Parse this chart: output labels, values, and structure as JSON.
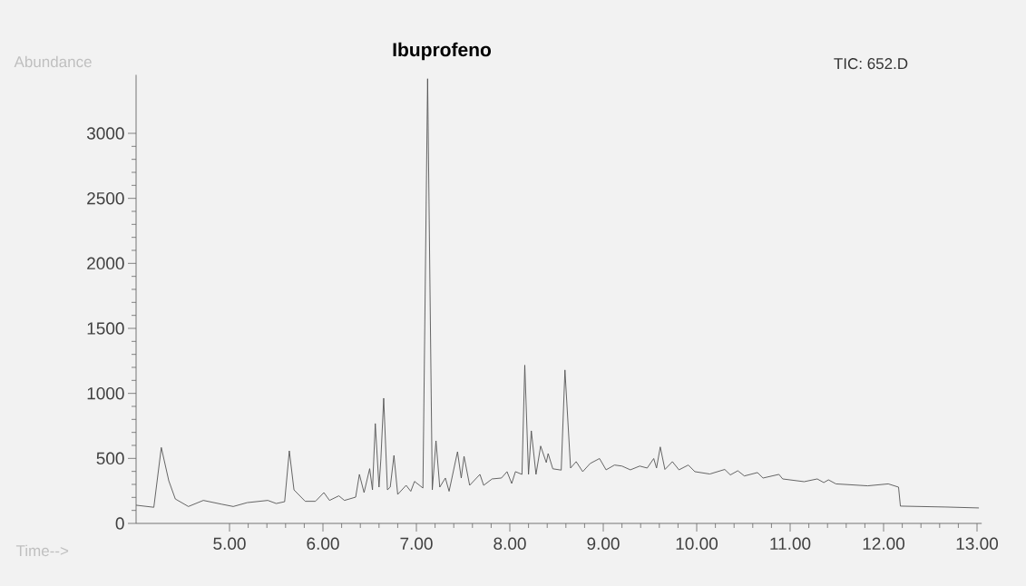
{
  "chart_data": {
    "type": "line",
    "title": "Ibuprofeno",
    "subtitle": "TIC: 652.D",
    "xlabel": "Time-->",
    "ylabel": "Abundance",
    "x": [
      4.0,
      4.19,
      4.27,
      4.35,
      4.42,
      4.56,
      4.72,
      4.92,
      5.04,
      5.19,
      5.41,
      5.5,
      5.59,
      5.64,
      5.69,
      5.81,
      5.92,
      6.01,
      6.07,
      6.17,
      6.23,
      6.35,
      6.39,
      6.44,
      6.5,
      6.53,
      6.56,
      6.6,
      6.62,
      6.65,
      6.69,
      6.72,
      6.76,
      6.8,
      6.89,
      6.94,
      6.98,
      7.07,
      7.12,
      7.17,
      7.21,
      7.25,
      7.31,
      7.35,
      7.44,
      7.48,
      7.51,
      7.57,
      7.68,
      7.72,
      7.81,
      7.91,
      7.97,
      8.02,
      8.06,
      8.13,
      8.16,
      8.2,
      8.23,
      8.28,
      8.33,
      8.39,
      8.41,
      8.46,
      8.55,
      8.59,
      8.65,
      8.71,
      8.78,
      8.86,
      8.96,
      9.03,
      9.12,
      9.2,
      9.29,
      9.39,
      9.47,
      9.54,
      9.57,
      9.61,
      9.66,
      9.74,
      9.81,
      9.91,
      9.98,
      10.14,
      10.3,
      10.36,
      10.44,
      10.51,
      10.65,
      10.71,
      10.88,
      10.92,
      11.15,
      11.29,
      11.36,
      11.41,
      11.49,
      11.83,
      12.05,
      12.16,
      12.18,
      12.67,
      13.02
    ],
    "series": [
      {
        "color": "#555555",
        "values": [
          140,
          124,
          584,
          328,
          188,
          130,
          177,
          147,
          130,
          160,
          177,
          153,
          167,
          558,
          258,
          170,
          170,
          237,
          177,
          212,
          177,
          202,
          377,
          237,
          421,
          258,
          768,
          279,
          496,
          963,
          258,
          279,
          523,
          223,
          293,
          247,
          323,
          272,
          3420,
          258,
          635,
          279,
          349,
          247,
          551,
          349,
          516,
          293,
          377,
          293,
          342,
          349,
          398,
          307,
          398,
          377,
          1217,
          377,
          712,
          377,
          595,
          468,
          537,
          420,
          410,
          1180,
          426,
          475,
          398,
          461,
          499,
          412,
          449,
          441,
          412,
          441,
          426,
          499,
          426,
          588,
          415,
          475,
          412,
          449,
          398,
          380,
          415,
          373,
          405,
          365,
          391,
          349,
          377,
          342,
          321,
          342,
          314,
          335,
          304,
          289,
          304,
          279,
          133,
          126,
          119
        ]
      }
    ],
    "xlim": [
      4.0,
      13.05
    ],
    "ylim": [
      0,
      3450
    ],
    "xticks": [
      {
        "value": 5,
        "label": "5.00"
      },
      {
        "value": 6,
        "label": "6.00"
      },
      {
        "value": 7,
        "label": "7.00"
      },
      {
        "value": 8,
        "label": "8.00"
      },
      {
        "value": 9,
        "label": "9.00"
      },
      {
        "value": 10,
        "label": "10.00"
      },
      {
        "value": 11,
        "label": "11.00"
      },
      {
        "value": 12,
        "label": "12.00"
      },
      {
        "value": 13,
        "label": "13.00"
      }
    ],
    "yticks": [
      0,
      500,
      1000,
      1500,
      2000,
      2500,
      3000
    ]
  }
}
